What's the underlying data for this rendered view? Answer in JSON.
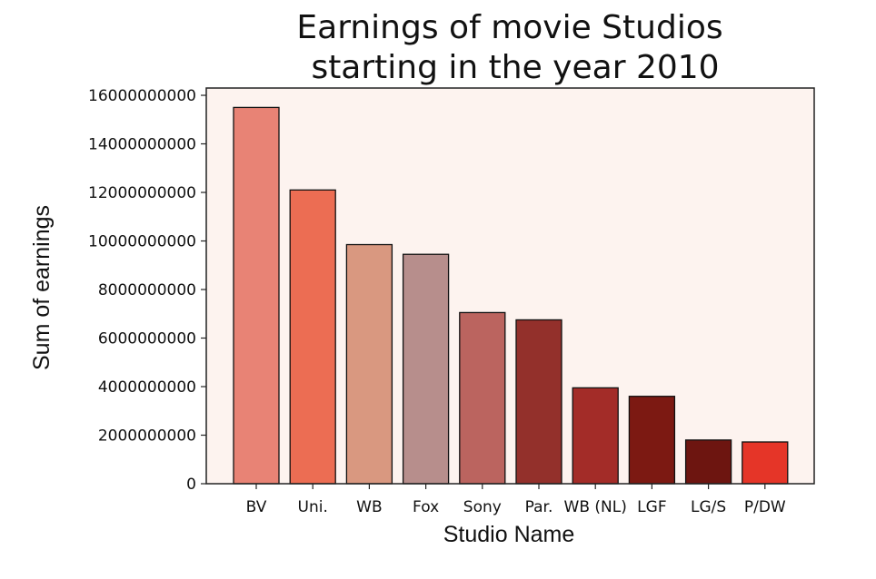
{
  "chart_data": {
    "type": "bar",
    "title_lines": [
      "Earnings of movie Studios",
      "starting in the year 2010"
    ],
    "xlabel": "Studio Name",
    "ylabel": "Sum of earnings",
    "categories": [
      "BV",
      "Uni.",
      "WB",
      "Fox",
      "Sony",
      "Par.",
      "WB (NL)",
      "LGF",
      "LG/S",
      "P/DW"
    ],
    "values": [
      15500000000,
      12100000000,
      9850000000,
      9450000000,
      7050000000,
      6750000000,
      3950000000,
      3600000000,
      1800000000,
      1720000000
    ],
    "colors": [
      "#e88375",
      "#ec6d53",
      "#d99880",
      "#b78e8c",
      "#bb645f",
      "#93302b",
      "#a32c28",
      "#7c1912",
      "#6d1510",
      "#e53528"
    ],
    "yticks": [
      0,
      2000000000,
      4000000000,
      6000000000,
      8000000000,
      10000000000,
      12000000000,
      14000000000,
      16000000000
    ],
    "ytick_labels": [
      "0",
      "2000000000",
      "4000000000",
      "6000000000",
      "8000000000",
      "10000000000",
      "12000000000",
      "14000000000",
      "16000000000"
    ],
    "ylim": [
      0,
      16300000000
    ],
    "plot_background": "#fdf3ef",
    "grid": false,
    "legend": "none"
  }
}
